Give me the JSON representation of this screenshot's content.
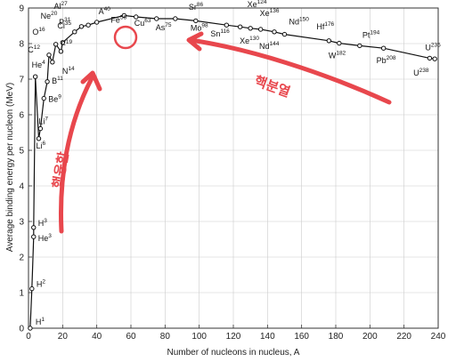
{
  "chart_data": {
    "type": "line",
    "title": "",
    "xlabel": "Number of nucleons in nucleus, A",
    "ylabel": "Average binding energy per nucleon (MeV)",
    "xlim": [
      0,
      240
    ],
    "ylim": [
      0,
      9
    ],
    "x_ticks": [
      "0",
      "20",
      "40",
      "60",
      "80",
      "100",
      "120",
      "140",
      "160",
      "180",
      "200",
      "220",
      "240"
    ],
    "y_ticks": [
      "0",
      "1",
      "2",
      "3",
      "4",
      "5",
      "6",
      "7",
      "8",
      "9"
    ],
    "grid": true,
    "series": [
      {
        "points": [
          {
            "x": 1,
            "y": 0
          },
          {
            "x": 2,
            "y": 1.11
          },
          {
            "x": 3,
            "y": 2.57
          },
          {
            "x": 3,
            "y": 2.83
          },
          {
            "x": 4,
            "y": 7.07
          },
          {
            "x": 6,
            "y": 5.33
          },
          {
            "x": 7,
            "y": 5.61
          },
          {
            "x": 9,
            "y": 6.46
          },
          {
            "x": 11,
            "y": 6.93
          },
          {
            "x": 12,
            "y": 7.68
          },
          {
            "x": 14,
            "y": 7.48
          },
          {
            "x": 16,
            "y": 7.98
          },
          {
            "x": 19,
            "y": 7.78
          },
          {
            "x": 20,
            "y": 8.03
          },
          {
            "x": 27,
            "y": 8.33
          },
          {
            "x": 31,
            "y": 8.48
          },
          {
            "x": 35,
            "y": 8.52
          },
          {
            "x": 40,
            "y": 8.6
          },
          {
            "x": 56,
            "y": 8.79
          },
          {
            "x": 63,
            "y": 8.75
          },
          {
            "x": 75,
            "y": 8.7
          },
          {
            "x": 86,
            "y": 8.7
          },
          {
            "x": 98,
            "y": 8.64
          },
          {
            "x": 116,
            "y": 8.52
          },
          {
            "x": 124,
            "y": 8.47
          },
          {
            "x": 130,
            "y": 8.43
          },
          {
            "x": 136,
            "y": 8.4
          },
          {
            "x": 144,
            "y": 8.33
          },
          {
            "x": 150,
            "y": 8.26
          },
          {
            "x": 176,
            "y": 8.08
          },
          {
            "x": 182,
            "y": 8.01
          },
          {
            "x": 194,
            "y": 7.94
          },
          {
            "x": 208,
            "y": 7.87
          },
          {
            "x": 235,
            "y": 7.59
          },
          {
            "x": 238,
            "y": 7.57
          }
        ]
      }
    ],
    "isotope_labels": [
      {
        "symbol": "H",
        "mass": "1",
        "x": 1,
        "y": 0
      },
      {
        "symbol": "H",
        "mass": "2",
        "x": 2,
        "y": 1.11
      },
      {
        "symbol": "He",
        "mass": "3",
        "x": 3,
        "y": 2.57
      },
      {
        "symbol": "H",
        "mass": "3",
        "x": 3,
        "y": 2.83
      },
      {
        "symbol": "He",
        "mass": "4",
        "x": 4,
        "y": 7.07
      },
      {
        "symbol": "Li",
        "mass": "6",
        "x": 6,
        "y": 5.33
      },
      {
        "symbol": "Li",
        "mass": "7",
        "x": 7,
        "y": 5.61
      },
      {
        "symbol": "Be",
        "mass": "9",
        "x": 9,
        "y": 6.46
      },
      {
        "symbol": "B",
        "mass": "11",
        "x": 11,
        "y": 6.93
      },
      {
        "symbol": "C",
        "mass": "12",
        "x": 12,
        "y": 7.68
      },
      {
        "symbol": "N",
        "mass": "14",
        "x": 14,
        "y": 7.48
      },
      {
        "symbol": "O",
        "mass": "16",
        "x": 16,
        "y": 7.98
      },
      {
        "symbol": "F",
        "mass": "19",
        "x": 19,
        "y": 7.78
      },
      {
        "symbol": "Ne",
        "mass": "20",
        "x": 20,
        "y": 8.03
      },
      {
        "symbol": "Al",
        "mass": "27",
        "x": 27,
        "y": 8.33
      },
      {
        "symbol": "P",
        "mass": "31",
        "x": 31,
        "y": 8.48
      },
      {
        "symbol": "Cl",
        "mass": "35",
        "x": 35,
        "y": 8.52
      },
      {
        "symbol": "A",
        "mass": "40",
        "x": 40,
        "y": 8.6
      },
      {
        "symbol": "Fe",
        "mass": "56",
        "x": 56,
        "y": 8.79
      },
      {
        "symbol": "Cu",
        "mass": "63",
        "x": 63,
        "y": 8.75
      },
      {
        "symbol": "As",
        "mass": "75",
        "x": 75,
        "y": 8.7
      },
      {
        "symbol": "Sr",
        "mass": "86",
        "x": 86,
        "y": 8.7
      },
      {
        "symbol": "Mo",
        "mass": "98",
        "x": 98,
        "y": 8.64
      },
      {
        "symbol": "Sn",
        "mass": "116",
        "x": 116,
        "y": 8.52
      },
      {
        "symbol": "Xe",
        "mass": "124",
        "x": 124,
        "y": 8.47
      },
      {
        "symbol": "Xe",
        "mass": "130",
        "x": 130,
        "y": 8.43
      },
      {
        "symbol": "Xe",
        "mass": "136",
        "x": 136,
        "y": 8.4
      },
      {
        "symbol": "Nd",
        "mass": "144",
        "x": 144,
        "y": 8.33
      },
      {
        "symbol": "Nd",
        "mass": "150",
        "x": 150,
        "y": 8.26
      },
      {
        "symbol": "Hf",
        "mass": "176",
        "x": 176,
        "y": 8.08
      },
      {
        "symbol": "W",
        "mass": "182",
        "x": 182,
        "y": 8.01
      },
      {
        "symbol": "Pt",
        "mass": "194",
        "x": 194,
        "y": 7.94
      },
      {
        "symbol": "Pb",
        "mass": "208",
        "x": 208,
        "y": 7.87
      },
      {
        "symbol": "U",
        "mass": "235",
        "x": 235,
        "y": 7.59
      },
      {
        "symbol": "U",
        "mass": "238",
        "x": 238,
        "y": 7.57
      }
    ],
    "annotations": [
      {
        "text": "핵융합",
        "color": "#e8474d"
      },
      {
        "text": "핵분열",
        "color": "#e8474d"
      }
    ],
    "highlight": {
      "label": "Fe",
      "mass": "56",
      "color": "#e8474d"
    },
    "colors": {
      "curve": "#111111",
      "grid": "#cccccc",
      "annotation": "#e8474d"
    }
  }
}
